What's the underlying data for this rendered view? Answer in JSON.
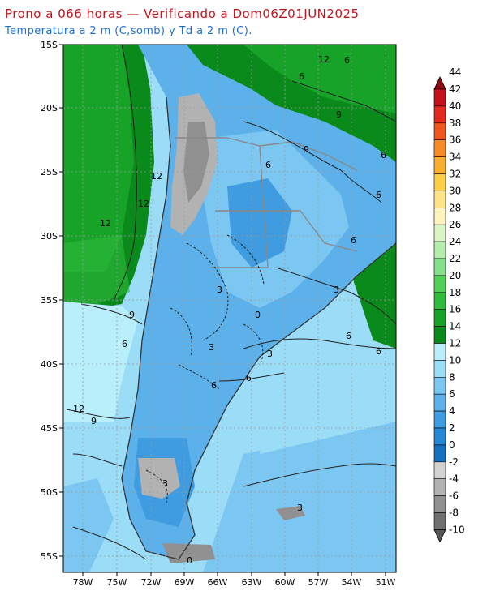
{
  "header": {
    "title": "Prono a 066 horas — Verificando a Dom06Z01JUN2025",
    "subtitle": "Temperatura a 2 m (C,somb) y Td a 2 m (C)."
  },
  "axes": {
    "lat_labels": [
      "15S",
      "20S",
      "25S",
      "30S",
      "35S",
      "40S",
      "45S",
      "50S",
      "55S"
    ],
    "lon_labels": [
      "78W",
      "75W",
      "72W",
      "69W",
      "66W",
      "63W",
      "60W",
      "57W",
      "54W",
      "51W"
    ]
  },
  "colorbar": {
    "labels": [
      "44",
      "42",
      "40",
      "38",
      "36",
      "34",
      "32",
      "30",
      "28",
      "26",
      "24",
      "22",
      "20",
      "18",
      "16",
      "14",
      "12",
      "10",
      "8",
      "6",
      "4",
      "2",
      "0",
      "-2",
      "-4",
      "-6",
      "-8",
      "-10"
    ],
    "colors": [
      "#8b0a12",
      "#c4121c",
      "#e32a1f",
      "#f1561f",
      "#f68b24",
      "#f8ae2e",
      "#fbcf45",
      "#fde488",
      "#fff4bd",
      "#d9f5c2",
      "#b4ecaa",
      "#86e08a",
      "#52cf58",
      "#2fbb3c",
      "#17a327",
      "#0b8a1c",
      "#b9effb",
      "#9bdcf7",
      "#7cc7f2",
      "#5db1ea",
      "#3f9ce0",
      "#2688d4",
      "#1671c0",
      "#d2d2d2",
      "#b2b2b2",
      "#909090",
      "#707070",
      "#555555"
    ]
  },
  "map_labels": {
    "contours": [
      "12",
      "6",
      "6",
      "9",
      "9",
      "6",
      "6",
      "6",
      "6",
      "6",
      "6",
      "12",
      "12",
      "12",
      "3",
      "9",
      "3",
      "6",
      "3",
      "0",
      "6",
      "6",
      "12",
      "9",
      "3",
      "3",
      "3",
      "0"
    ]
  }
}
